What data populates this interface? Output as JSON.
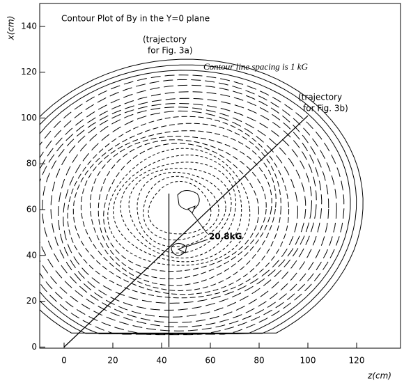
{
  "chart_data": {
    "type": "contour",
    "title": "Contour Plot of By in the Y=0 plane",
    "annotation": "Contour line spacing is 1 kG",
    "xlabel": "z(cm)",
    "ylabel": "x(cm)",
    "xlim": [
      -10,
      138
    ],
    "ylim": [
      -0.5,
      150
    ],
    "xticks": [
      0,
      20,
      40,
      60,
      80,
      100,
      120
    ],
    "yticks": [
      0,
      20,
      40,
      60,
      80,
      100,
      120,
      140
    ],
    "peak": {
      "label": "20.8kG"
    },
    "trajectories": [
      {
        "label": [
          "(trajectory",
          "for Fig. 3a)"
        ],
        "z": [
          43,
          43
        ],
        "x": [
          0,
          67
        ]
      },
      {
        "label": [
          "(trajectory",
          "for Fig. 3b)"
        ],
        "z": [
          0,
          100
        ],
        "x": [
          0,
          101
        ]
      }
    ]
  }
}
